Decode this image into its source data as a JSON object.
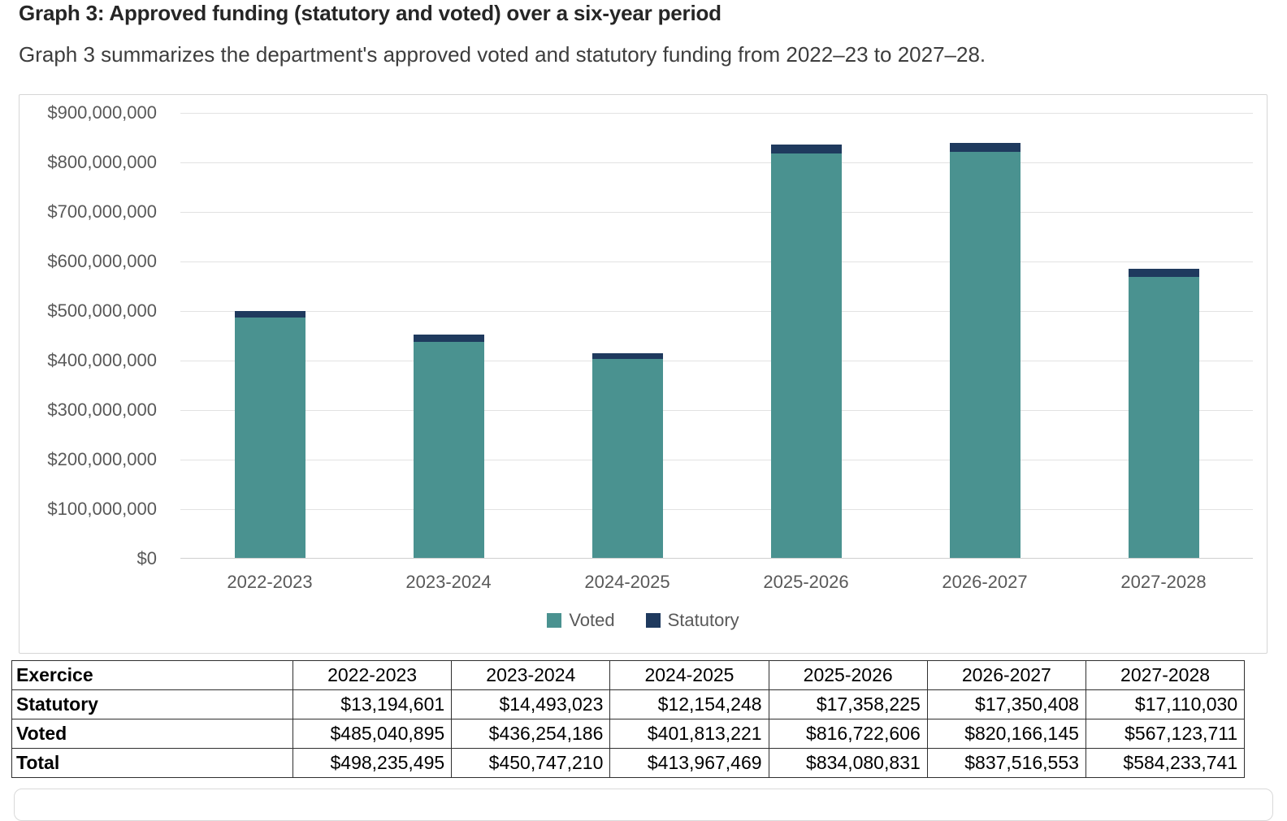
{
  "page": {
    "title": "Graph 3: Approved funding (statutory and voted) over a six-year period",
    "subtitle": "Graph 3 summarizes the department's approved voted and statutory funding from 2022–23 to 2027–28."
  },
  "chart_data": {
    "type": "bar",
    "stacked": true,
    "title": "",
    "xlabel": "",
    "ylabel": "",
    "categories": [
      "2022-2023",
      "2023-2024",
      "2024-2025",
      "2025-2026",
      "2026-2027",
      "2027-2028"
    ],
    "series": [
      {
        "name": "Voted",
        "color": "#4a9290",
        "values": [
          485040895,
          436254186,
          401813221,
          816722606,
          820166145,
          567123711
        ]
      },
      {
        "name": "Statutory",
        "color": "#1f3a5e",
        "values": [
          13194601,
          14493023,
          12154248,
          17358225,
          17350408,
          17110030
        ]
      }
    ],
    "totals": [
      498235495,
      450747210,
      413967469,
      834080831,
      837516553,
      584233741
    ],
    "ylim": [
      0,
      900000000
    ],
    "ytick_step": 100000000,
    "ytick_labels": [
      "$0",
      "$100,000,000",
      "$200,000,000",
      "$300,000,000",
      "$400,000,000",
      "$500,000,000",
      "$600,000,000",
      "$700,000,000",
      "$800,000,000",
      "$900,000,000"
    ],
    "grid": true,
    "legend_position": "bottom-center"
  },
  "table": {
    "header": [
      "Exercice",
      "2022-2023",
      "2023-2024",
      "2024-2025",
      "2025-2026",
      "2026-2027",
      "2027-2028"
    ],
    "rows": [
      {
        "label": "Statutory",
        "values": [
          "$13,194,601",
          "$14,493,023",
          "$12,154,248",
          "$17,358,225",
          "$17,350,408",
          "$17,110,030"
        ]
      },
      {
        "label": "Voted",
        "values": [
          "$485,040,895",
          "$436,254,186",
          "$401,813,221",
          "$816,722,606",
          "$820,166,145",
          "$567,123,711"
        ]
      },
      {
        "label": "Total",
        "values": [
          "$498,235,495",
          "$450,747,210",
          "$413,967,469",
          "$834,080,831",
          "$837,516,553",
          "$584,233,741"
        ]
      }
    ]
  }
}
